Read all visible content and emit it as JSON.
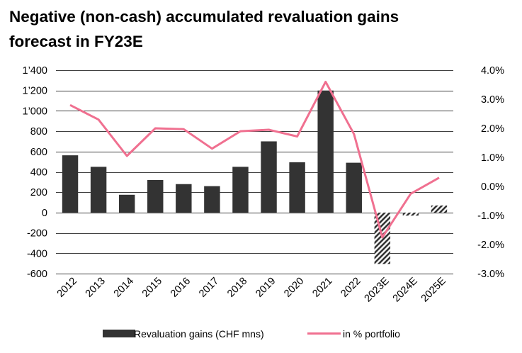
{
  "title_line1": "Negative (non-cash) accumulated revaluation gains",
  "title_line2": "forecast in FY23E",
  "chart_data": {
    "type": "bar",
    "title": "Negative (non-cash) accumulated revaluation gains forecast in FY23E",
    "categories": [
      "2012",
      "2013",
      "2014",
      "2015",
      "2016",
      "2017",
      "2018",
      "2019",
      "2020",
      "2021",
      "2022",
      "2023E",
      "2024E",
      "2025E"
    ],
    "series": [
      {
        "name": "Revaluation gains (CHF mns)",
        "type": "bar",
        "axis": "left",
        "color": "#333333",
        "values": [
          563,
          450,
          175,
          320,
          280,
          260,
          450,
          700,
          495,
          1200,
          490,
          -505,
          -30,
          70
        ],
        "forecast": [
          false,
          false,
          false,
          false,
          false,
          false,
          false,
          false,
          false,
          false,
          false,
          true,
          true,
          true
        ]
      },
      {
        "name": "in % portfolio",
        "type": "line",
        "axis": "right",
        "color": "#f07090",
        "values": [
          2.8,
          2.3,
          1.05,
          2.0,
          1.97,
          1.3,
          1.9,
          1.95,
          1.72,
          3.6,
          1.8,
          -1.75,
          -0.25,
          0.3
        ]
      }
    ],
    "left_axis": {
      "ylim": [
        -600,
        1400
      ],
      "ticks": [
        -600,
        -400,
        -200,
        0,
        200,
        400,
        600,
        800,
        1000,
        1200,
        1400
      ],
      "tick_labels": [
        "-600",
        "-400",
        "-200",
        "0",
        "200",
        "400",
        "600",
        "800",
        "1’000",
        "1’200",
        "1’400"
      ]
    },
    "right_axis": {
      "ylim": [
        -3.0,
        4.0
      ],
      "ticks": [
        -3,
        -2,
        -1,
        0,
        1,
        2,
        3,
        4
      ],
      "tick_labels": [
        "-3.0%",
        "-2.0%",
        "-1.0%",
        "0.0%",
        "1.0%",
        "2.0%",
        "3.0%",
        "4.0%"
      ]
    },
    "grid": true,
    "legend_position": "bottom"
  },
  "colors": {
    "bar": "#333333",
    "line": "#f07090",
    "grid": "#000000"
  }
}
